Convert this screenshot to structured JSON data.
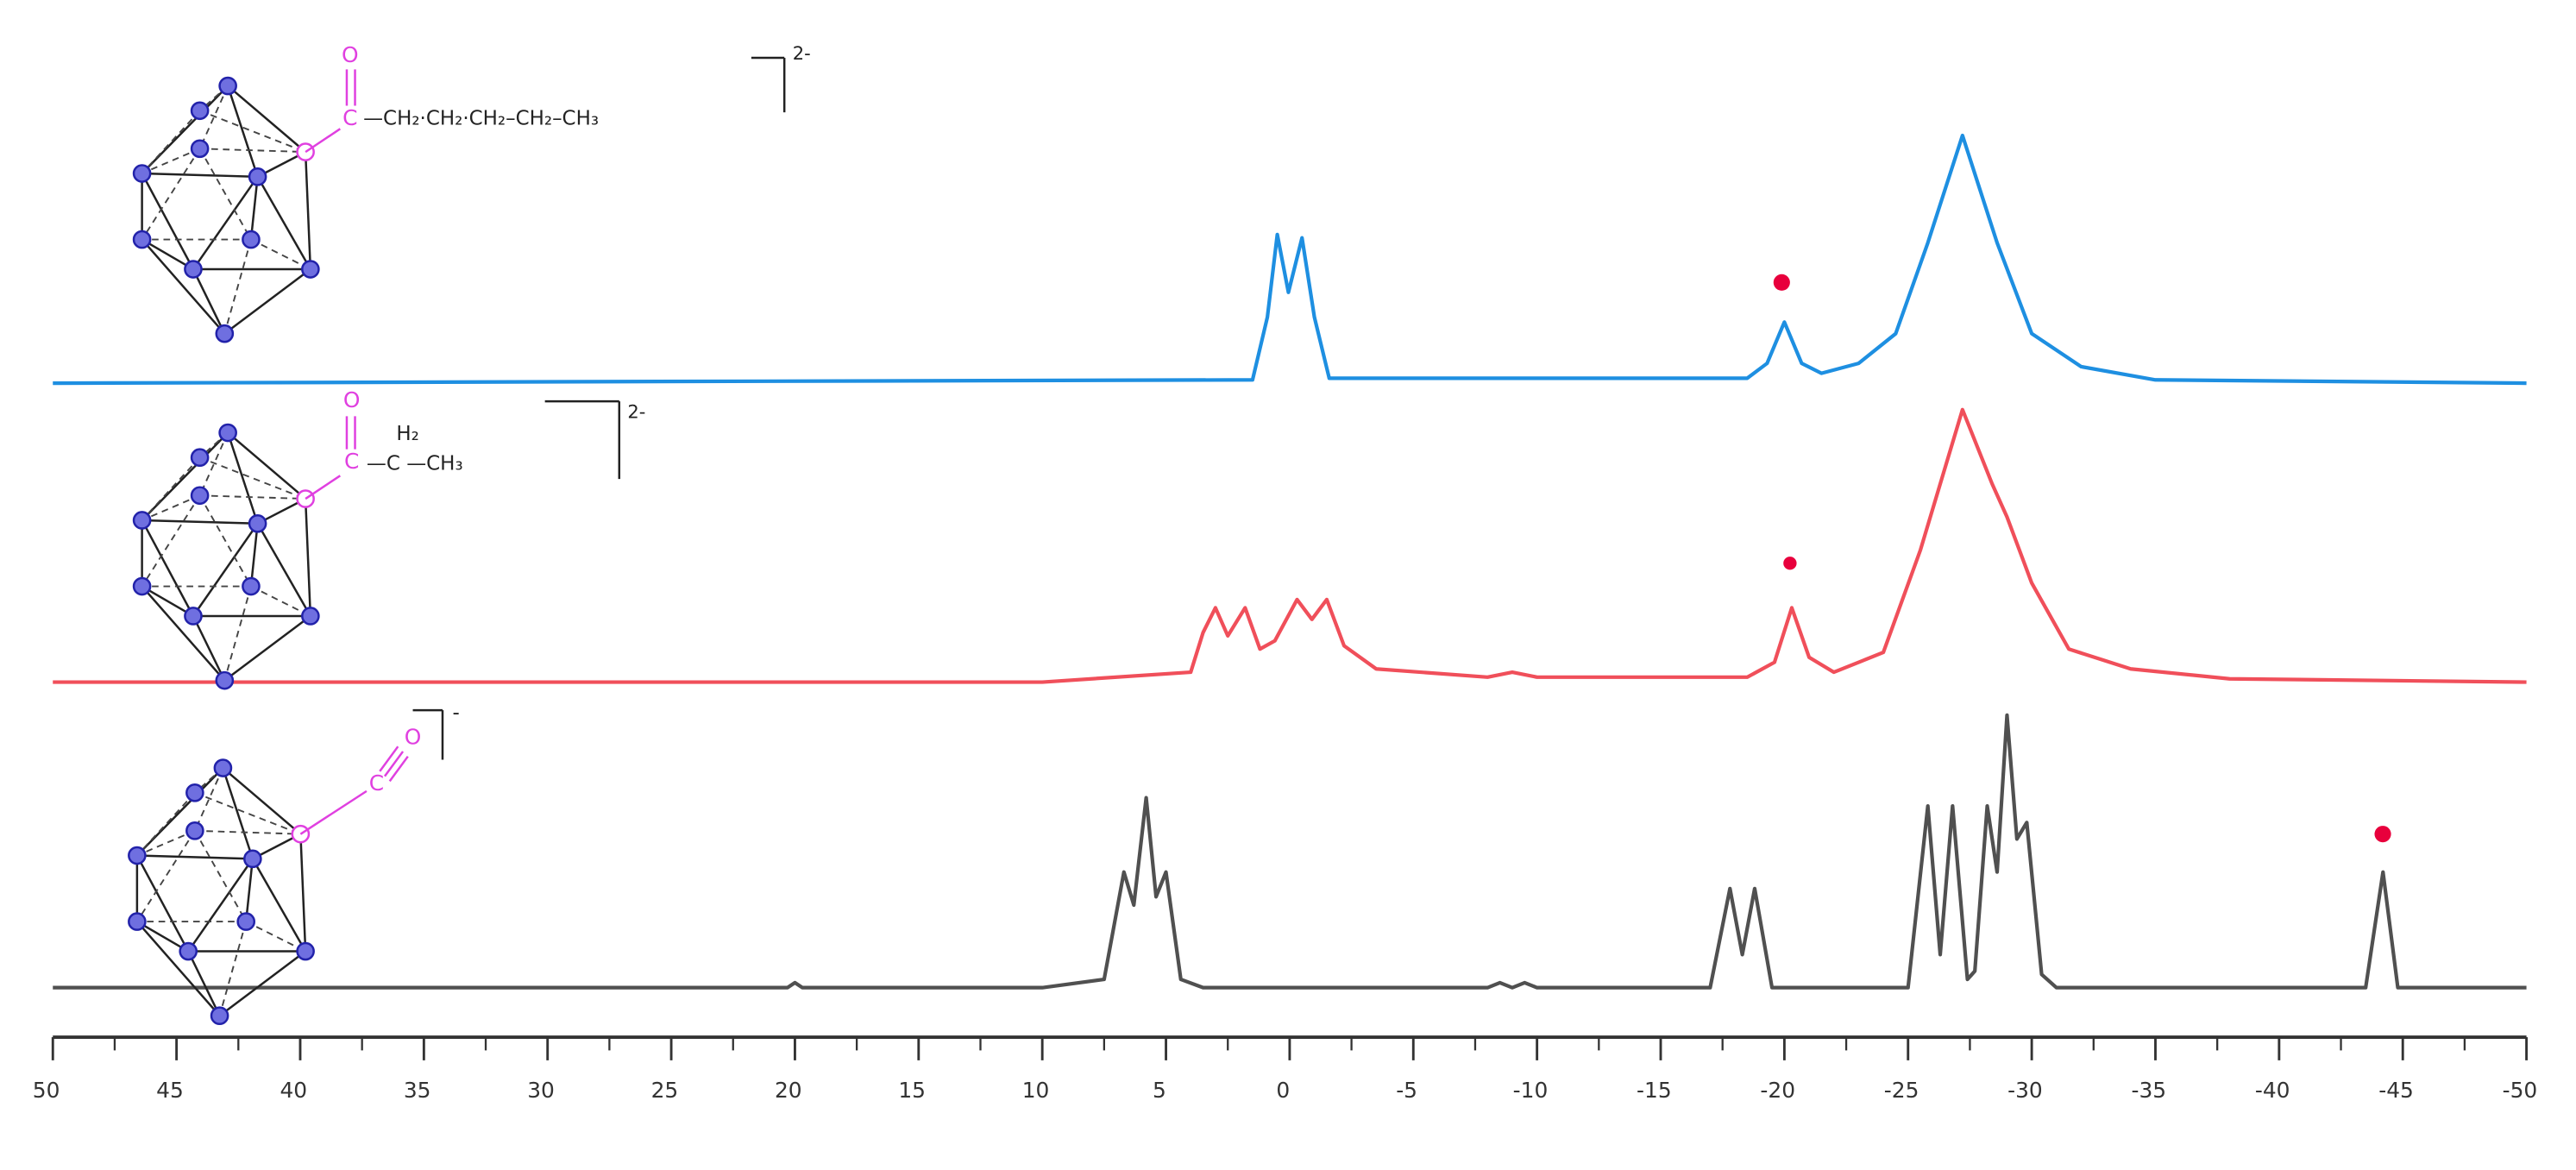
{
  "chart_data": {
    "type": "line",
    "xlim": [
      50,
      -50
    ],
    "xticks": [
      50,
      45,
      40,
      35,
      30,
      25,
      20,
      15,
      10,
      5,
      0,
      -5,
      -10,
      -15,
      -20,
      -25,
      -30,
      -35,
      -40,
      -45,
      -50
    ],
    "xminorticks": [
      47.5,
      42.5,
      37.5,
      32.5,
      27.5,
      22.5,
      17.5,
      12.5,
      7.5,
      2.5,
      -2.5,
      -7.5,
      -12.5,
      -17.5,
      -22.5,
      -27.5,
      -32.5,
      -37.5,
      -42.5,
      -47.5
    ],
    "series": [
      {
        "color": "#1e8fe1",
        "x": [
          50,
          1.5,
          0.9,
          0.5,
          0.05,
          -0.5,
          -1.0,
          -1.6,
          -18.5,
          -19.3,
          -20,
          -20.7,
          -21.5,
          -23,
          -24.5,
          -25.8,
          -27.2,
          -28.6,
          -30,
          -32,
          -35,
          -50
        ],
        "values": [
          0,
          2,
          40,
          90,
          55,
          88,
          40,
          3,
          3,
          12,
          37,
          12,
          6,
          12,
          30,
          85,
          150,
          85,
          30,
          10,
          2,
          0
        ]
      },
      {
        "color": "#f04f5a",
        "x": [
          50,
          10,
          4,
          3.5,
          3,
          2.5,
          1.8,
          1.2,
          0.6,
          -0.3,
          -0.9,
          -1.5,
          -2.2,
          -3.5,
          -8,
          -9,
          -10,
          -18.5,
          -19.6,
          -20.3,
          -21,
          -22,
          -24,
          -25.5,
          -27.2,
          -28.4,
          -29,
          -30,
          -31.5,
          -34,
          -38,
          -50
        ],
        "values": [
          0,
          0,
          6,
          30,
          45,
          28,
          45,
          20,
          25,
          50,
          38,
          50,
          22,
          8,
          3,
          6,
          3,
          3,
          12,
          45,
          15,
          6,
          18,
          80,
          165,
          120,
          100,
          60,
          20,
          8,
          2,
          0
        ]
      },
      {
        "color": "#505050",
        "x": [
          50,
          20.3,
          20,
          19.7,
          10,
          7.5,
          6.7,
          6.3,
          5.8,
          5.4,
          5.0,
          4.4,
          3.5,
          -8,
          -8.5,
          -9,
          -9.5,
          -10,
          -17,
          -17.8,
          -18.3,
          -18.8,
          -19.5,
          -25,
          -25.8,
          -26.3,
          -26.8,
          -27.4,
          -27.7,
          -28.2,
          -28.6,
          -29,
          -29.4,
          -29.8,
          -30.4,
          -31,
          -43.5,
          -44.2,
          -44.8,
          -50
        ],
        "values": [
          0,
          0,
          3,
          0,
          0,
          5,
          70,
          50,
          115,
          55,
          70,
          5,
          0,
          0,
          3,
          0,
          3,
          0,
          0,
          60,
          20,
          60,
          0,
          0,
          110,
          20,
          110,
          5,
          10,
          110,
          70,
          165,
          90,
          100,
          8,
          0,
          0,
          70,
          0,
          0
        ]
      }
    ],
    "structures": [
      {
        "labels": [
          "O",
          "C",
          "—CH₂·CH₂·CH₂–CH₂–CH₃",
          "2-"
        ]
      },
      {
        "labels": [
          "O",
          "C",
          "H₂",
          "—C —CH₃",
          "2-"
        ]
      },
      {
        "labels": [
          "C",
          "O",
          "-"
        ]
      }
    ]
  }
}
